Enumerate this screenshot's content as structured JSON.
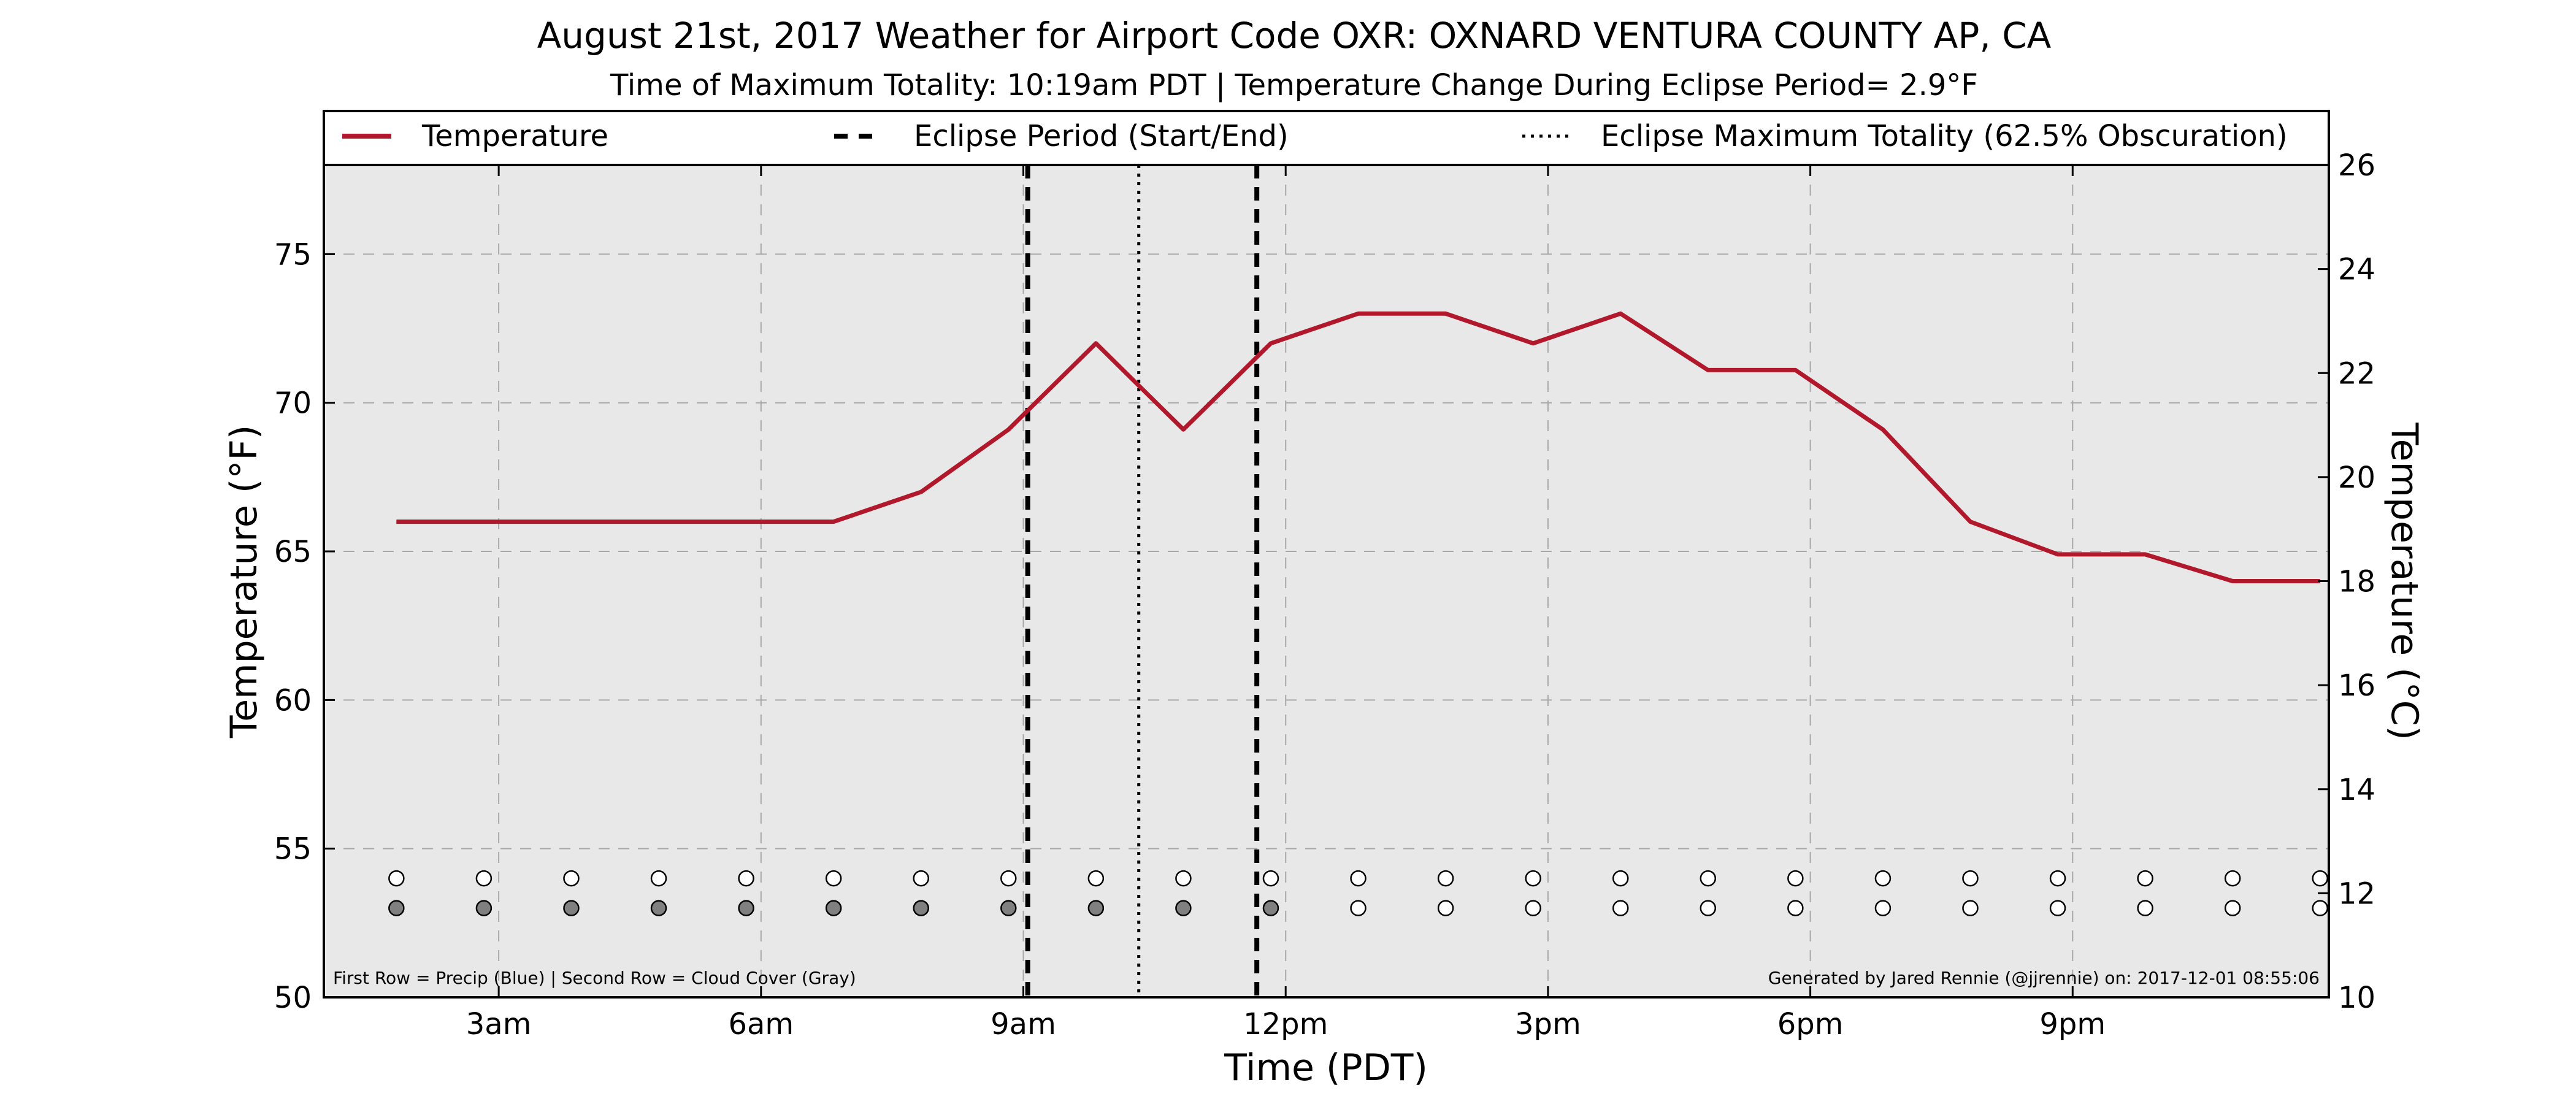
{
  "chart_data": {
    "type": "line",
    "title": "August 21st, 2017 Weather for Airport Code OXR: OXNARD VENTURA COUNTY AP, CA",
    "subtitle": "Time of Maximum Totality: 10:19am PDT | Temperature Change During Eclipse Period= 2.9°F",
    "xlabel": "Time (PDT)",
    "ylabel": "Temperature (°F)",
    "ylabel_right": "Temperature (°C)",
    "x_ticks": [
      {
        "hour": 3,
        "label": "3am"
      },
      {
        "hour": 6,
        "label": "6am"
      },
      {
        "hour": 9,
        "label": "9am"
      },
      {
        "hour": 12,
        "label": "12pm"
      },
      {
        "hour": 15,
        "label": "3pm"
      },
      {
        "hour": 18,
        "label": "6pm"
      },
      {
        "hour": 21,
        "label": "9pm"
      }
    ],
    "xlim_hours": [
      1,
      23.93
    ],
    "ylim": [
      50,
      78
    ],
    "y_ticks": [
      50,
      55,
      60,
      65,
      70,
      75
    ],
    "ylim_right": [
      10,
      26
    ],
    "y_ticks_right": [
      10,
      12,
      14,
      16,
      18,
      20,
      22,
      24,
      26
    ],
    "grid": true,
    "legend_position": "top",
    "legend": [
      {
        "label": "Temperature",
        "style": "solid"
      },
      {
        "label": "Eclipse Period (Start/End)",
        "style": "dashed"
      },
      {
        "label": "Eclipse Maximum Totality (62.5% Obscuration)",
        "style": "dotted"
      }
    ],
    "series": [
      {
        "name": "Temperature",
        "color": "#b2182b",
        "x": [
          1.83,
          2.83,
          3.83,
          4.83,
          5.83,
          6.83,
          7.83,
          8.83,
          9.83,
          10.83,
          11.83,
          12.83,
          13.83,
          14.83,
          15.83,
          16.83,
          17.83,
          18.83,
          19.83,
          20.83,
          21.83,
          22.83,
          23.83
        ],
        "y": [
          66,
          66,
          66,
          66,
          66,
          66,
          67,
          69.1,
          72,
          69.1,
          72,
          73,
          73,
          72,
          73,
          71.1,
          71.1,
          69.1,
          66,
          64.9,
          64.9,
          64,
          64
        ]
      }
    ],
    "eclipse_start_hour": 9.05,
    "eclipse_end_hour": 11.67,
    "eclipse_max_hour": 10.32,
    "precip_row": {
      "y": 54,
      "x": [
        1.83,
        2.83,
        3.83,
        4.83,
        5.83,
        6.83,
        7.83,
        8.83,
        9.83,
        10.83,
        11.83,
        12.83,
        13.83,
        14.83,
        15.83,
        16.83,
        17.83,
        18.83,
        19.83,
        20.83,
        21.83,
        22.83,
        23.83
      ],
      "fill": [
        "#ffffff",
        "#ffffff",
        "#ffffff",
        "#ffffff",
        "#ffffff",
        "#ffffff",
        "#ffffff",
        "#ffffff",
        "#ffffff",
        "#ffffff",
        "#ffffff",
        "#ffffff",
        "#ffffff",
        "#ffffff",
        "#ffffff",
        "#ffffff",
        "#ffffff",
        "#ffffff",
        "#ffffff",
        "#ffffff",
        "#ffffff",
        "#ffffff",
        "#ffffff"
      ]
    },
    "cloud_row": {
      "y": 53,
      "x": [
        1.83,
        2.83,
        3.83,
        4.83,
        5.83,
        6.83,
        7.83,
        8.83,
        9.83,
        10.83,
        11.83,
        12.83,
        13.83,
        14.83,
        15.83,
        16.83,
        17.83,
        18.83,
        19.83,
        20.83,
        21.83,
        22.83,
        23.83
      ],
      "fill": [
        "#808080",
        "#808080",
        "#808080",
        "#808080",
        "#808080",
        "#808080",
        "#808080",
        "#808080",
        "#808080",
        "#808080",
        "#808080",
        "#ffffff",
        "#ffffff",
        "#ffffff",
        "#ffffff",
        "#ffffff",
        "#ffffff",
        "#ffffff",
        "#ffffff",
        "#ffffff",
        "#ffffff",
        "#ffffff",
        "#ffffff"
      ]
    },
    "note_left": "First Row = Precip (Blue) | Second Row = Cloud Cover (Gray)",
    "note_right": "Generated by Jared Rennie (@jjrennie) on: 2017-12-01 08:55:06"
  },
  "colors": {
    "plot_background": "#e8e8e8",
    "temperature_line": "#b2182b",
    "grid": "#a8a8a8"
  }
}
